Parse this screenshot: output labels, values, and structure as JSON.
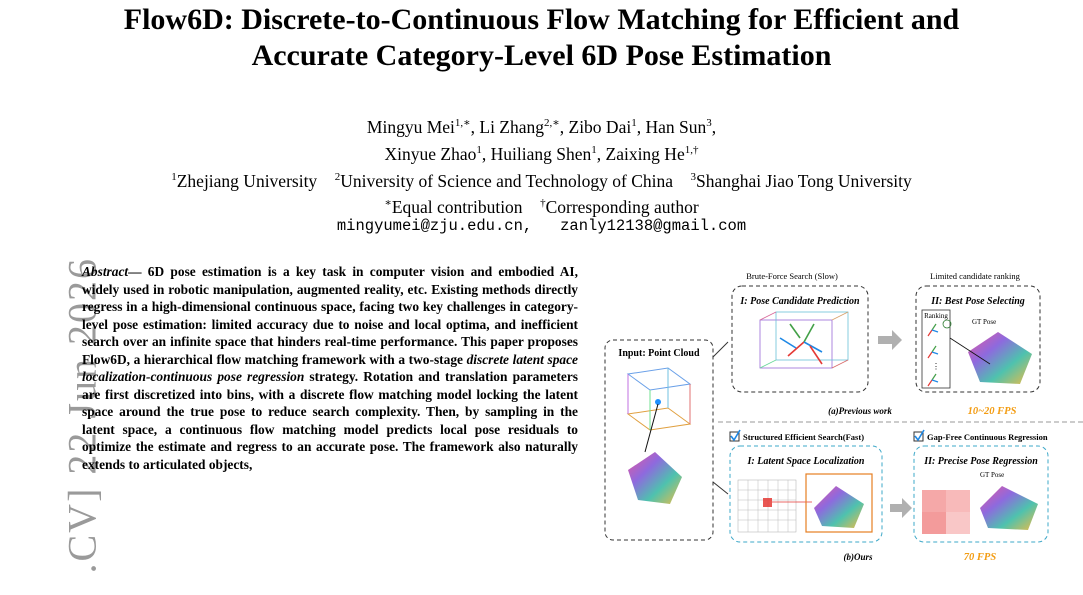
{
  "title_line1": "Flow6D: Discrete-to-Continuous Flow Matching for Efficient and",
  "title_line2": "Accurate Category-Level 6D Pose Estimation",
  "authors": {
    "line1": [
      {
        "name": "Mingyu Mei",
        "sup": "1,∗",
        "sep": ", "
      },
      {
        "name": "Li Zhang",
        "sup": "2,∗",
        "sep": ", "
      },
      {
        "name": "Zibo Dai",
        "sup": "1",
        "sep": ", "
      },
      {
        "name": "Han Sun",
        "sup": "3",
        "sep": ","
      }
    ],
    "line2": [
      {
        "name": "Xinyue Zhao",
        "sup": "1",
        "sep": ", "
      },
      {
        "name": "Huiliang Shen",
        "sup": "1",
        "sep": ", "
      },
      {
        "name": "Zaixing He",
        "sup": "1,†",
        "sep": ""
      }
    ]
  },
  "affiliations": [
    {
      "sup": "1",
      "name": "Zhejiang University"
    },
    {
      "sup": "2",
      "name": "University of Science and Technology of China"
    },
    {
      "sup": "3",
      "name": "Shanghai Jiao Tong University"
    }
  ],
  "notes": {
    "equal_sup": "∗",
    "equal": "Equal contribution",
    "corr_sup": "†",
    "corr": "Corresponding author"
  },
  "emails": {
    "e1": "mingyumei@zju.edu.cn,",
    "e2": "zanly12138@gmail.com"
  },
  "arxiv_stamp": ".CV]  22 Jun 2026",
  "abstract": {
    "label": "Abstract",
    "dash": "— ",
    "part1": "6D pose estimation is a key task in computer vision and embodied AI, widely used in robotic manipulation, augmented reality, etc. Existing methods directly regress in a high-dimensional continuous space, facing two key challenges in category-level pose estimation: limited accuracy due to noise and local optima, and inefficient search over an infinite space that hinders real-time performance. This paper proposes Flow6D, a hierarchical flow matching framework with a two-stage ",
    "italic": "discrete latent space localization-continuous pose regression",
    "part2": " strategy. Rotation and translation parameters are first discretized into bins, with a discrete flow matching model locking the latent space around the true pose to reduce search complexity. Then, by sampling in the latent space, a continuous flow matching model predicts local pose residuals to optimize the estimate and regress to an accurate pose. The framework also naturally extends to articulated objects,"
  },
  "figure": {
    "input_label": "Input: Point Cloud",
    "brute_force": "Brute-Force Search (Slow)",
    "limited_ranking": "Limited candidate ranking",
    "stage1_prev": "I: Pose Candidate Prediction",
    "stage2_prev": "II: Best Pose Selecting",
    "ranking": "Ranking",
    "gt_pose": "GT Pose",
    "prev_caption": "(a)Previous work",
    "prev_fps": "10~20 FPS",
    "structured": "Structured Efficient Search(Fast)",
    "gapfree": "Gap-Free Continuous Regression",
    "stage1_ours": "I: Latent  Space Localization",
    "stage2_ours": "II: Precise Pose Regression",
    "gt_pose2": "GT Pose",
    "ours_caption": "(b)Ours",
    "ours_fps": "70 FPS",
    "colors": {
      "orange": "#f39c12",
      "teal": "#3ea8c8",
      "dark": "#333333",
      "arrow": "#b0b0b0"
    }
  }
}
